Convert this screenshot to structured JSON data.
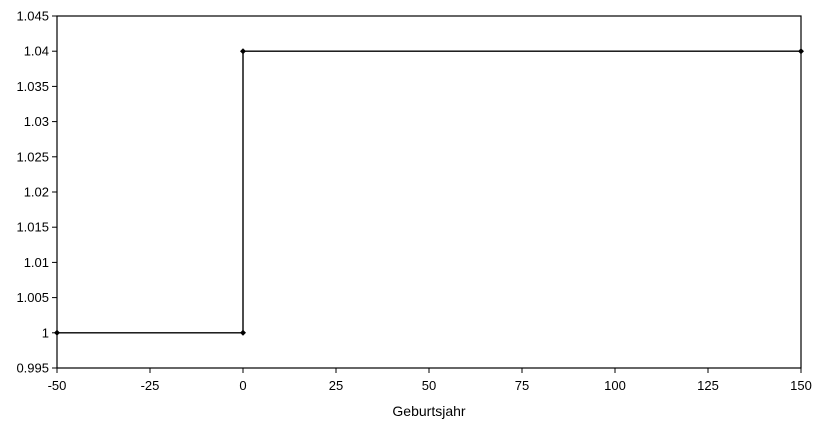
{
  "chart_data": {
    "type": "line",
    "title": "",
    "xlabel": "Geburtsjahr",
    "ylabel": "",
    "xlim": [
      -50,
      150
    ],
    "ylim": [
      0.995,
      1.045
    ],
    "x_ticks": [
      -50,
      -25,
      0,
      25,
      50,
      75,
      100,
      125,
      150
    ],
    "x_tick_labels": [
      "-50",
      "-25",
      "0",
      "25",
      "50",
      "75",
      "100",
      "125",
      "150"
    ],
    "y_ticks": [
      0.995,
      1,
      1.005,
      1.01,
      1.015,
      1.02,
      1.025,
      1.03,
      1.035,
      1.04,
      1.045
    ],
    "y_tick_labels": [
      "0.995",
      "1",
      "1.005",
      "1.01",
      "1.015",
      "1.02",
      "1.025",
      "1.03",
      "1.035",
      "1.04",
      "1.045"
    ],
    "grid": false,
    "legend": "none",
    "series": [
      {
        "x": [
          -50,
          0,
          0,
          150
        ],
        "y": [
          1,
          1,
          1.04,
          1.04
        ],
        "markers": "diamond",
        "color": "#000000"
      }
    ]
  }
}
